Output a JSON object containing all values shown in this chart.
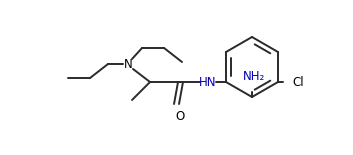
{
  "bg_color": "#ffffff",
  "line_color": "#2a2a2a",
  "text_color": "#000000",
  "blue_color": "#0000bb",
  "label_NH2": "NH₂",
  "label_HN": "HN",
  "label_N": "N",
  "label_O": "O",
  "label_Cl": "Cl",
  "figsize": [
    3.53,
    1.55
  ],
  "dpi": 100
}
